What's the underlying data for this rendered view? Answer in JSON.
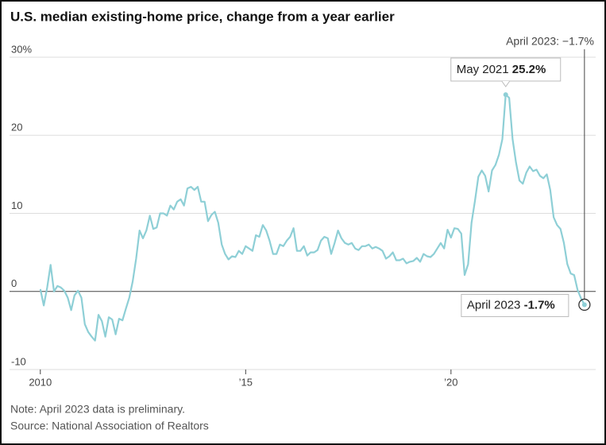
{
  "chart_data": {
    "type": "line",
    "title": "U.S. median existing-home price, change from a year earlier",
    "top_label": "April 2023: −1.7%",
    "peak_label": "May 2021",
    "peak_value_label": "25.2%",
    "last_label": "April 2023",
    "last_value_label": "-1.7%",
    "note": "Note: April 2023 data is preliminary.",
    "source": "Source: National Association of Realtors",
    "color": "#8ecfd6",
    "xlim": [
      2009.25,
      2023.33
    ],
    "ylim": [
      -10,
      30
    ],
    "xticks": [
      {
        "value": 2010,
        "label": "2010"
      },
      {
        "value": 2015,
        "label": "’15"
      },
      {
        "value": 2020,
        "label": "’20"
      }
    ],
    "yticks": [
      {
        "value": 30,
        "label": "30%"
      },
      20,
      10,
      0,
      -10
    ],
    "grid": true,
    "x": [
      2010.0,
      2010.083,
      2010.167,
      2010.25,
      2010.333,
      2010.417,
      2010.5,
      2010.583,
      2010.667,
      2010.75,
      2010.833,
      2010.917,
      2011.0,
      2011.083,
      2011.167,
      2011.25,
      2011.333,
      2011.417,
      2011.5,
      2011.583,
      2011.667,
      2011.75,
      2011.833,
      2011.917,
      2012.0,
      2012.083,
      2012.167,
      2012.25,
      2012.333,
      2012.417,
      2012.5,
      2012.583,
      2012.667,
      2012.75,
      2012.833,
      2012.917,
      2013.0,
      2013.083,
      2013.167,
      2013.25,
      2013.333,
      2013.417,
      2013.5,
      2013.583,
      2013.667,
      2013.75,
      2013.833,
      2013.917,
      2014.0,
      2014.083,
      2014.167,
      2014.25,
      2014.333,
      2014.417,
      2014.5,
      2014.583,
      2014.667,
      2014.75,
      2014.833,
      2014.917,
      2015.0,
      2015.083,
      2015.167,
      2015.25,
      2015.333,
      2015.417,
      2015.5,
      2015.583,
      2015.667,
      2015.75,
      2015.833,
      2015.917,
      2016.0,
      2016.083,
      2016.167,
      2016.25,
      2016.333,
      2016.417,
      2016.5,
      2016.583,
      2016.667,
      2016.75,
      2016.833,
      2016.917,
      2017.0,
      2017.083,
      2017.167,
      2017.25,
      2017.333,
      2017.417,
      2017.5,
      2017.583,
      2017.667,
      2017.75,
      2017.833,
      2017.917,
      2018.0,
      2018.083,
      2018.167,
      2018.25,
      2018.333,
      2018.417,
      2018.5,
      2018.583,
      2018.667,
      2018.75,
      2018.833,
      2018.917,
      2019.0,
      2019.083,
      2019.167,
      2019.25,
      2019.333,
      2019.417,
      2019.5,
      2019.583,
      2019.667,
      2019.75,
      2019.833,
      2019.917,
      2020.0,
      2020.083,
      2020.167,
      2020.25,
      2020.333,
      2020.417,
      2020.5,
      2020.583,
      2020.667,
      2020.75,
      2020.833,
      2020.917,
      2021.0,
      2021.083,
      2021.167,
      2021.25,
      2021.333,
      2021.417,
      2021.5,
      2021.583,
      2021.667,
      2021.75,
      2021.833,
      2021.917,
      2022.0,
      2022.083,
      2022.167,
      2022.25,
      2022.333,
      2022.417,
      2022.5,
      2022.583,
      2022.667,
      2022.75,
      2022.833,
      2022.917,
      2023.0,
      2023.083,
      2023.167,
      2023.25
    ],
    "values": [
      0.3,
      -1.8,
      0.5,
      3.4,
      0,
      0.7,
      0.5,
      0.1,
      -0.8,
      -2.4,
      -0.5,
      0.1,
      -0.8,
      -4.2,
      -5.2,
      -5.8,
      -6.3,
      -3.0,
      -3.8,
      -5.8,
      -3.3,
      -3.6,
      -5.5,
      -3.5,
      -3.7,
      -2.2,
      -0.8,
      1.3,
      4.2,
      7.8,
      6.8,
      7.8,
      9.7,
      8.0,
      8.2,
      10.0,
      10.0,
      9.7,
      11.0,
      10.5,
      11.5,
      11.8,
      11.0,
      13.2,
      13.4,
      13.0,
      13.4,
      11.5,
      11.5,
      9.0,
      9.8,
      10.2,
      8.8,
      6.0,
      4.8,
      4.1,
      4.5,
      4.4,
      5.2,
      4.8,
      5.8,
      5.5,
      5.2,
      7.2,
      7.0,
      8.5,
      7.8,
      6.5,
      4.8,
      4.8,
      6.0,
      5.8,
      6.5,
      7.0,
      8.1,
      5.2,
      5.2,
      5.8,
      4.6,
      5.0,
      5.0,
      5.3,
      6.5,
      7.0,
      6.8,
      4.8,
      6.2,
      7.8,
      6.8,
      6.2,
      6.0,
      6.2,
      5.5,
      5.3,
      5.8,
      5.8,
      6.0,
      5.5,
      5.7,
      5.5,
      5.2,
      4.2,
      4.5,
      5.0,
      4.0,
      4.0,
      4.2,
      3.6,
      3.8,
      3.9,
      4.3,
      3.8,
      4.8,
      4.5,
      4.4,
      4.8,
      5.5,
      6.2,
      5.5,
      7.9,
      6.9,
      8.1,
      8.0,
      7.4,
      2.1,
      3.5,
      8.8,
      11.6,
      14.7,
      15.5,
      14.8,
      12.8,
      15.5,
      16.2,
      17.5,
      19.5,
      25.2,
      24.8,
      19.5,
      16.5,
      14.2,
      13.8,
      15.2,
      16.0,
      15.4,
      15.6,
      14.8,
      14.5,
      15.0,
      13.0,
      9.5,
      8.5,
      8.0,
      6.2,
      3.5,
      2.3,
      2.1,
      0.2,
      -0.9,
      -1.7
    ]
  }
}
